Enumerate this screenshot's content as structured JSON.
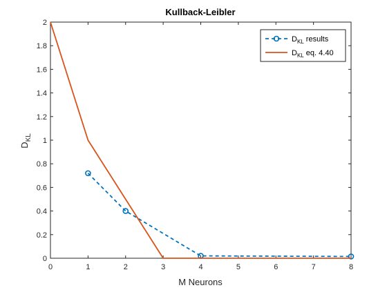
{
  "chart_data": {
    "type": "line",
    "title": "Kullback-Leibler",
    "xlabel": "M Neurons",
    "ylabel": {
      "main": "D",
      "sub": "KL"
    },
    "xlim": [
      0,
      8
    ],
    "ylim": [
      0,
      2
    ],
    "xticks": [
      "0",
      "1",
      "2",
      "3",
      "4",
      "5",
      "6",
      "7",
      "8"
    ],
    "yticks": [
      "0",
      "0.2",
      "0.4",
      "0.6",
      "0.8",
      "1",
      "1.2",
      "1.4",
      "1.6",
      "1.8",
      "2"
    ],
    "grid": false,
    "legend_position": "top-right",
    "series": [
      {
        "legend": {
          "main": "D",
          "sub": "KL",
          "rest": " results"
        },
        "color": "#0072BD",
        "style": "dashed-circle-markers",
        "x": [
          1,
          2,
          4,
          8
        ],
        "y": [
          0.72,
          0.4,
          0.02,
          0.015
        ]
      },
      {
        "legend": {
          "main": "D",
          "sub": "KL",
          "rest": " eq. 4.40"
        },
        "color": "#D95319",
        "style": "solid",
        "x": [
          0,
          1,
          2,
          3,
          4,
          5,
          6,
          7,
          8
        ],
        "y": [
          2,
          1,
          0.5,
          0,
          0,
          0,
          0,
          0,
          0
        ]
      }
    ]
  }
}
